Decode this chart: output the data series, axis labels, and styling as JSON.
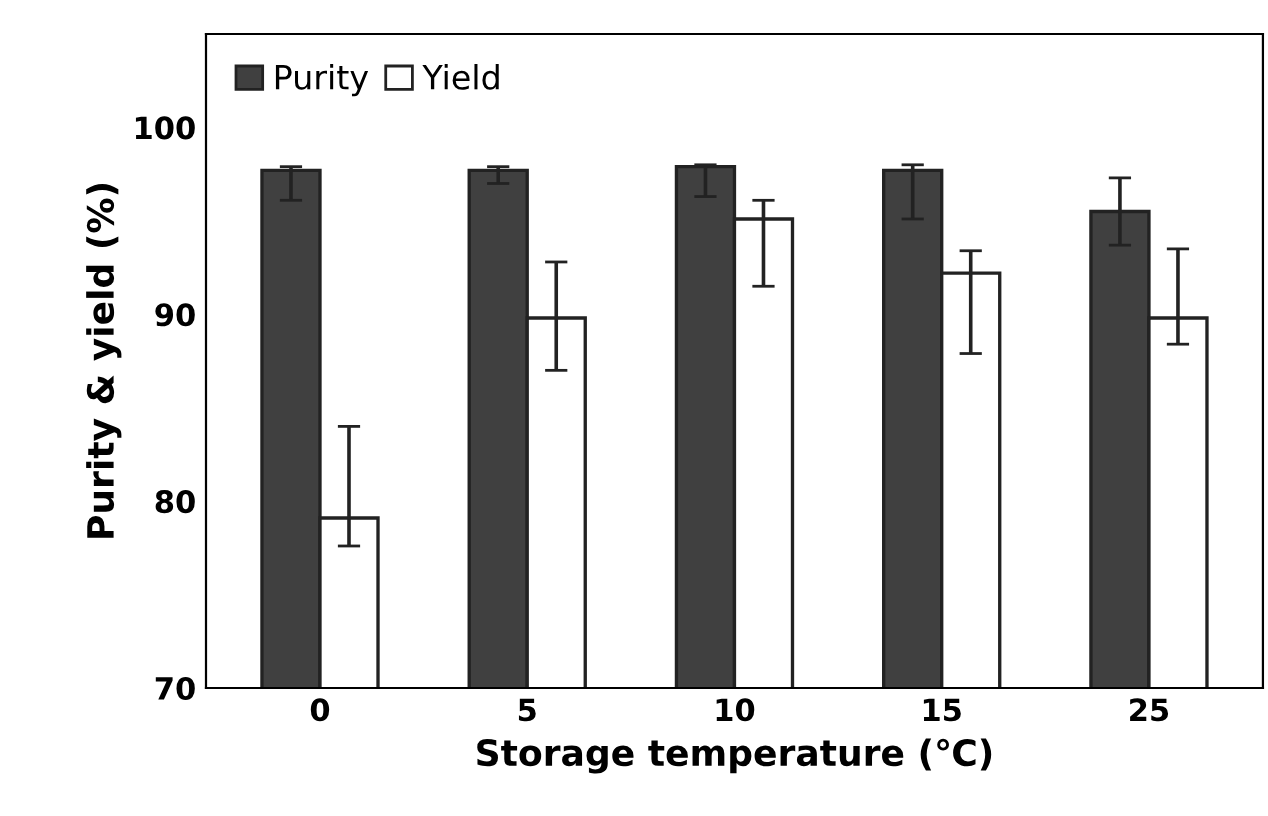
{
  "chart_data": {
    "type": "bar",
    "xlabel": "Storage temperature (℃)",
    "ylabel": "Purity & yield (%)",
    "categories": [
      "0",
      "5",
      "10",
      "15",
      "25"
    ],
    "series": [
      {
        "name": "Purity",
        "color": "#404040",
        "values": [
          97.7,
          97.7,
          97.9,
          97.7,
          95.5
        ],
        "errors": [
          [
            96.1,
            97.9
          ],
          [
            97.0,
            97.9
          ],
          [
            96.3,
            98.0
          ],
          [
            95.1,
            98.0
          ],
          [
            93.7,
            97.3
          ]
        ]
      },
      {
        "name": "Yield",
        "color": "#ffffff",
        "values": [
          79.1,
          89.8,
          95.1,
          92.2,
          89.8
        ],
        "errors": [
          [
            77.6,
            84.0
          ],
          [
            87.0,
            92.8
          ],
          [
            91.5,
            96.1
          ],
          [
            87.9,
            93.4
          ],
          [
            88.4,
            93.5
          ]
        ]
      }
    ],
    "ylim": [
      70,
      105
    ],
    "yticks": [
      70,
      80,
      90,
      100
    ],
    "grid": false,
    "legend": "top left"
  }
}
